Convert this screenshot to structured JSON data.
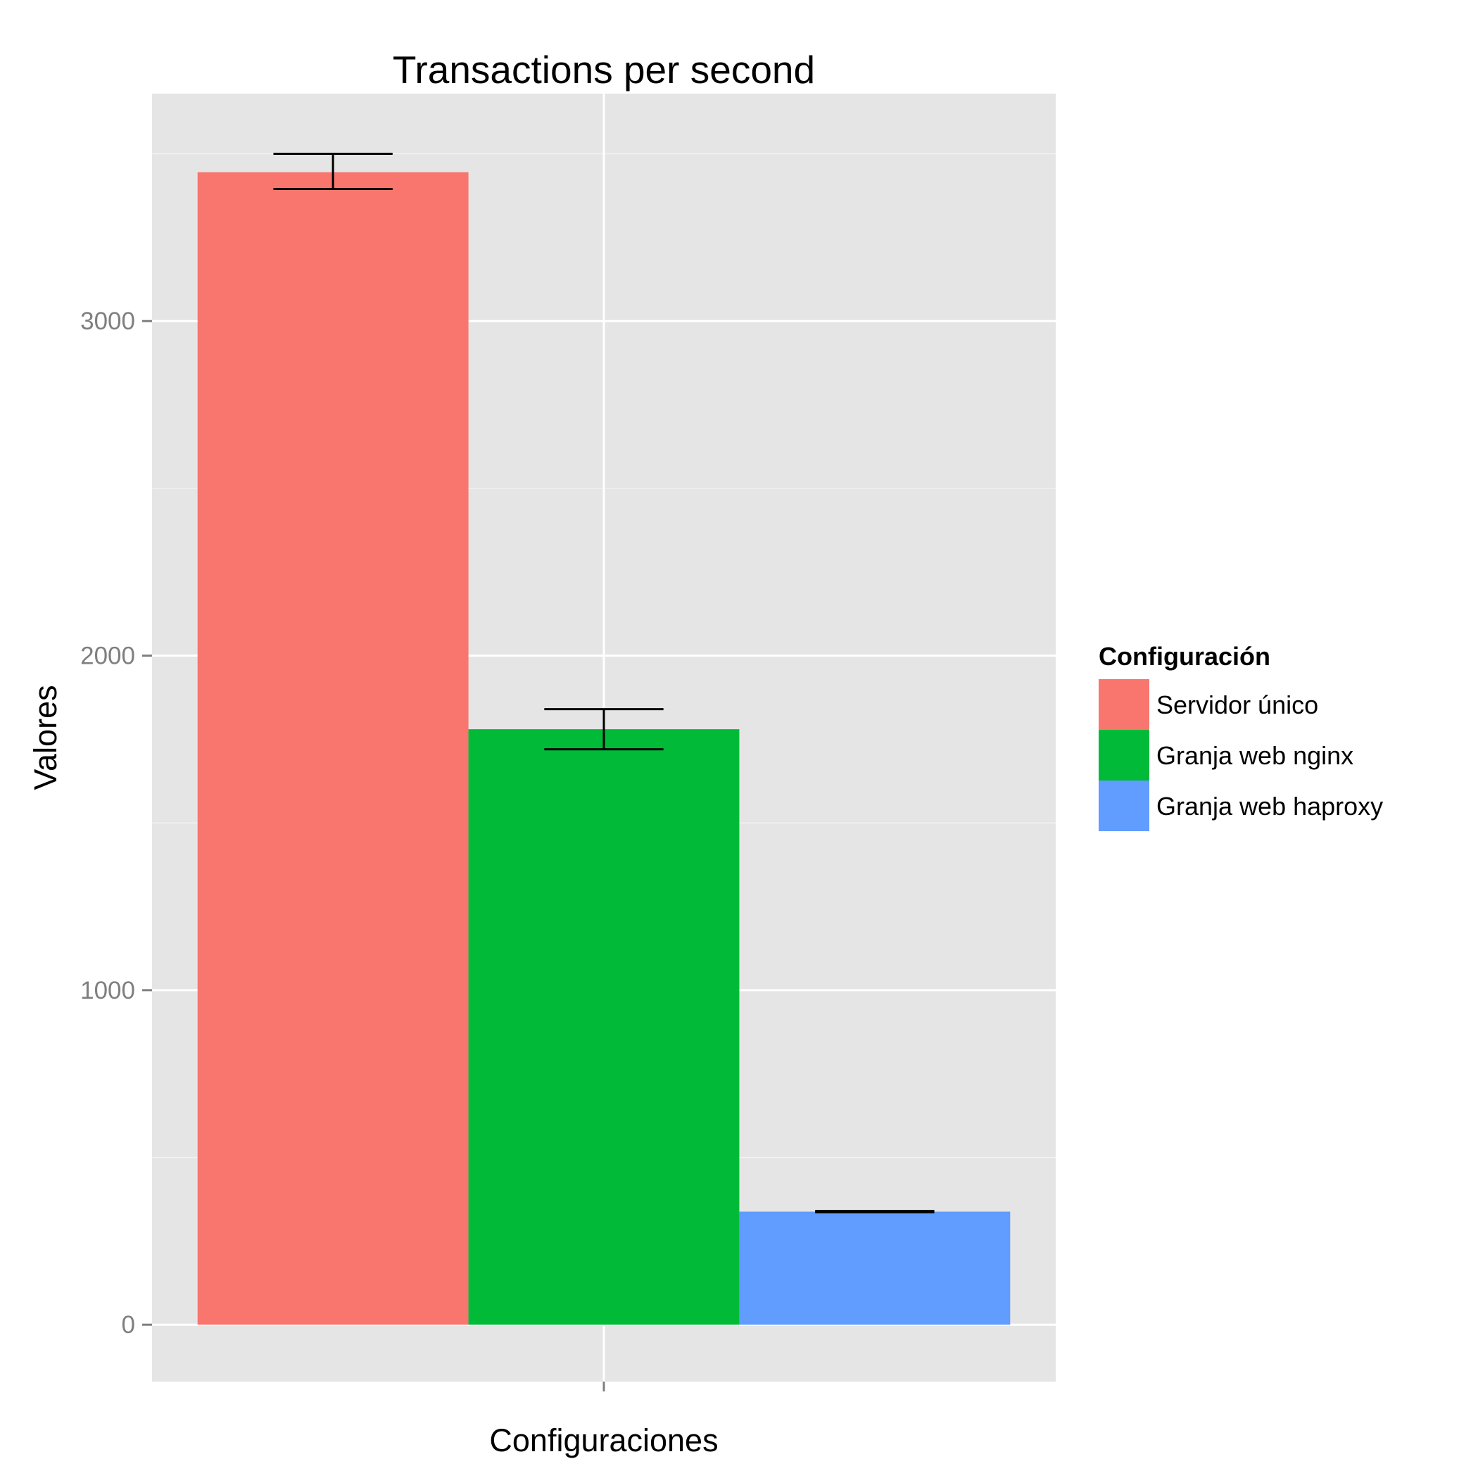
{
  "chart_data": {
    "type": "bar",
    "title": "Transactions per second",
    "xlabel": "Configuraciones",
    "ylabel": "Valores",
    "categories": [
      ""
    ],
    "series": [
      {
        "name": "Servidor único",
        "values": [
          3445
        ],
        "error_low": [
          3395
        ],
        "error_high": [
          3500
        ],
        "color": "#F8766D"
      },
      {
        "name": "Granja web nginx",
        "values": [
          1780
        ],
        "error_low": [
          1720
        ],
        "error_high": [
          1840
        ],
        "color": "#00BA38"
      },
      {
        "name": "Granja web haproxy",
        "values": [
          338
        ],
        "error_low": [
          336
        ],
        "error_high": [
          340
        ],
        "color": "#619CFF"
      }
    ],
    "ylim": [
      -170,
      3680
    ],
    "yticks": [
      0,
      1000,
      2000,
      3000
    ],
    "ytick_labels": [
      "0",
      "1000",
      "2000",
      "3000"
    ],
    "grid": true,
    "panel_background": "#E5E5E5",
    "grid_color": "#FFFFFF",
    "legend": {
      "title": "Configuración",
      "placement": "right",
      "entries": [
        "Servidor único",
        "Granja web nginx",
        "Granja web haproxy"
      ]
    }
  }
}
